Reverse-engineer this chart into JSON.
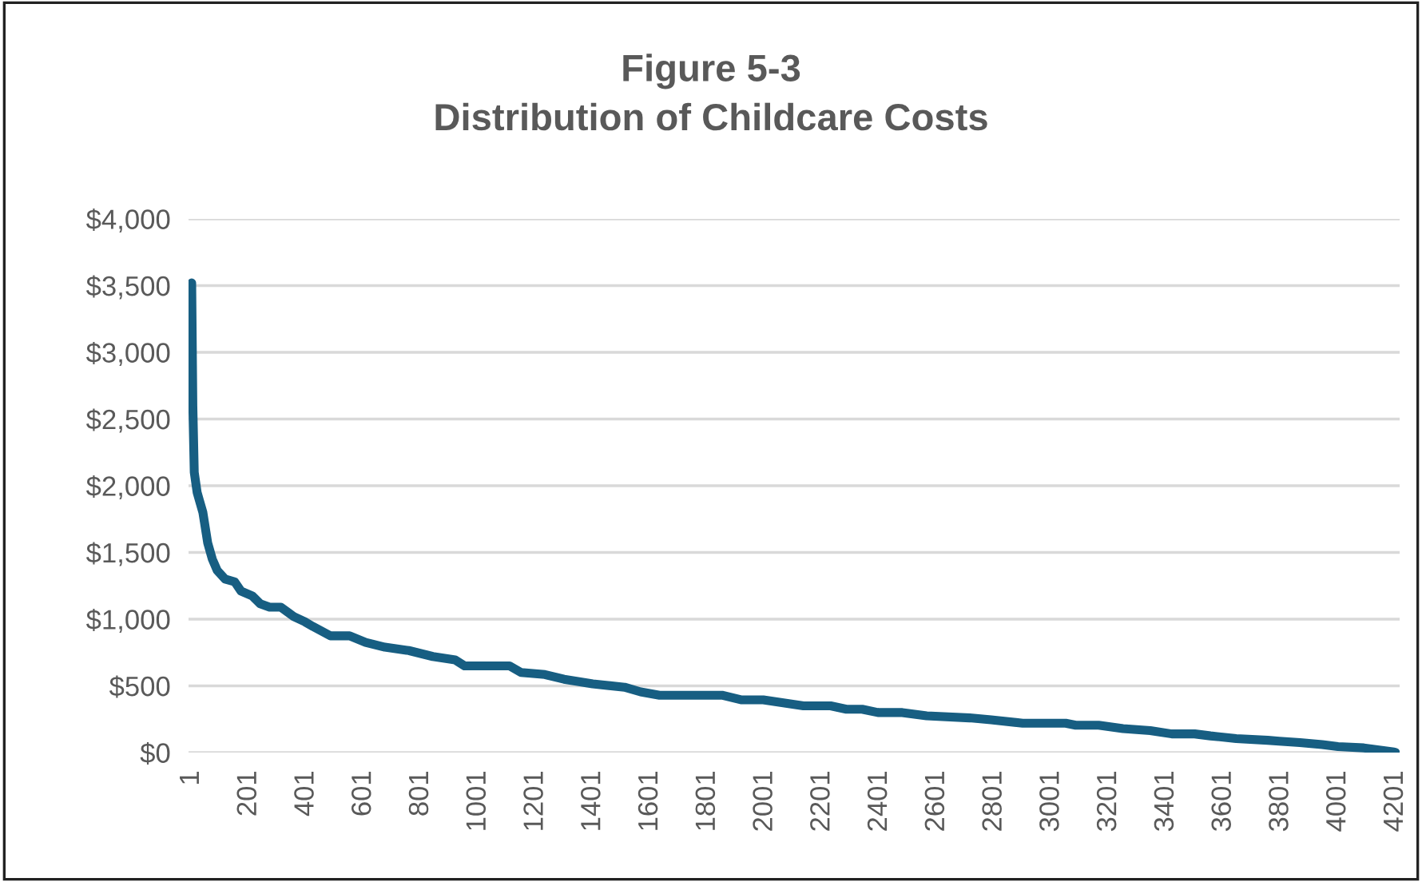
{
  "chart_data": {
    "type": "line",
    "title": "Figure 5-3\nDistribution of Childcare Costs",
    "x": [
      1,
      5,
      10,
      20,
      40,
      57,
      73,
      90,
      118,
      151,
      173,
      212,
      240,
      273,
      312,
      357,
      396,
      424,
      485,
      552,
      608,
      675,
      758,
      842,
      920,
      953,
      1110,
      1150,
      1233,
      1300,
      1400,
      1511,
      1567,
      1633,
      1790,
      1851,
      1920,
      1995,
      2135,
      2230,
      2285,
      2340,
      2395,
      2480,
      2565,
      2715,
      2790,
      2900,
      3050,
      3085,
      3165,
      3250,
      3345,
      3420,
      3500,
      3555,
      3645,
      3755,
      3795,
      3867,
      3945,
      4000,
      4090,
      4195,
      4201
    ],
    "series": [
      {
        "color": "#175e82",
        "values": [
          3520,
          2600,
          2100,
          1950,
          1800,
          1570,
          1450,
          1365,
          1300,
          1280,
          1210,
          1175,
          1115,
          1090,
          1090,
          1020,
          980,
          945,
          875,
          875,
          825,
          790,
          765,
          720,
          695,
          650,
          650,
          600,
          585,
          550,
          515,
          490,
          455,
          430,
          430,
          430,
          395,
          395,
          350,
          350,
          325,
          325,
          300,
          300,
          275,
          260,
          245,
          220,
          220,
          205,
          205,
          180,
          165,
          140,
          140,
          125,
          105,
          92,
          85,
          75,
          60,
          45,
          35,
          5,
          0
        ]
      }
    ],
    "xlim": [
      -10,
      4215
    ],
    "xticks": [
      1,
      201,
      401,
      601,
      801,
      1001,
      1201,
      1401,
      1601,
      1801,
      2001,
      2201,
      2401,
      2601,
      2801,
      3001,
      3201,
      3401,
      3601,
      3801,
      4001,
      4201
    ],
    "ylim": [
      0,
      4000
    ],
    "yticks": [
      {
        "value": 0,
        "label": "$0"
      },
      {
        "value": 500,
        "label": "$500"
      },
      {
        "value": 1000,
        "label": "$1,000"
      },
      {
        "value": 1500,
        "label": "$1,500"
      },
      {
        "value": 2000,
        "label": "$2,000"
      },
      {
        "value": 2500,
        "label": "$2,500"
      },
      {
        "value": 3000,
        "label": "$3,000"
      },
      {
        "value": 3500,
        "label": "$3,500"
      },
      {
        "value": 4000,
        "label": "$4,000"
      }
    ],
    "grid": "y",
    "marker": "none",
    "line_style": "solid"
  }
}
